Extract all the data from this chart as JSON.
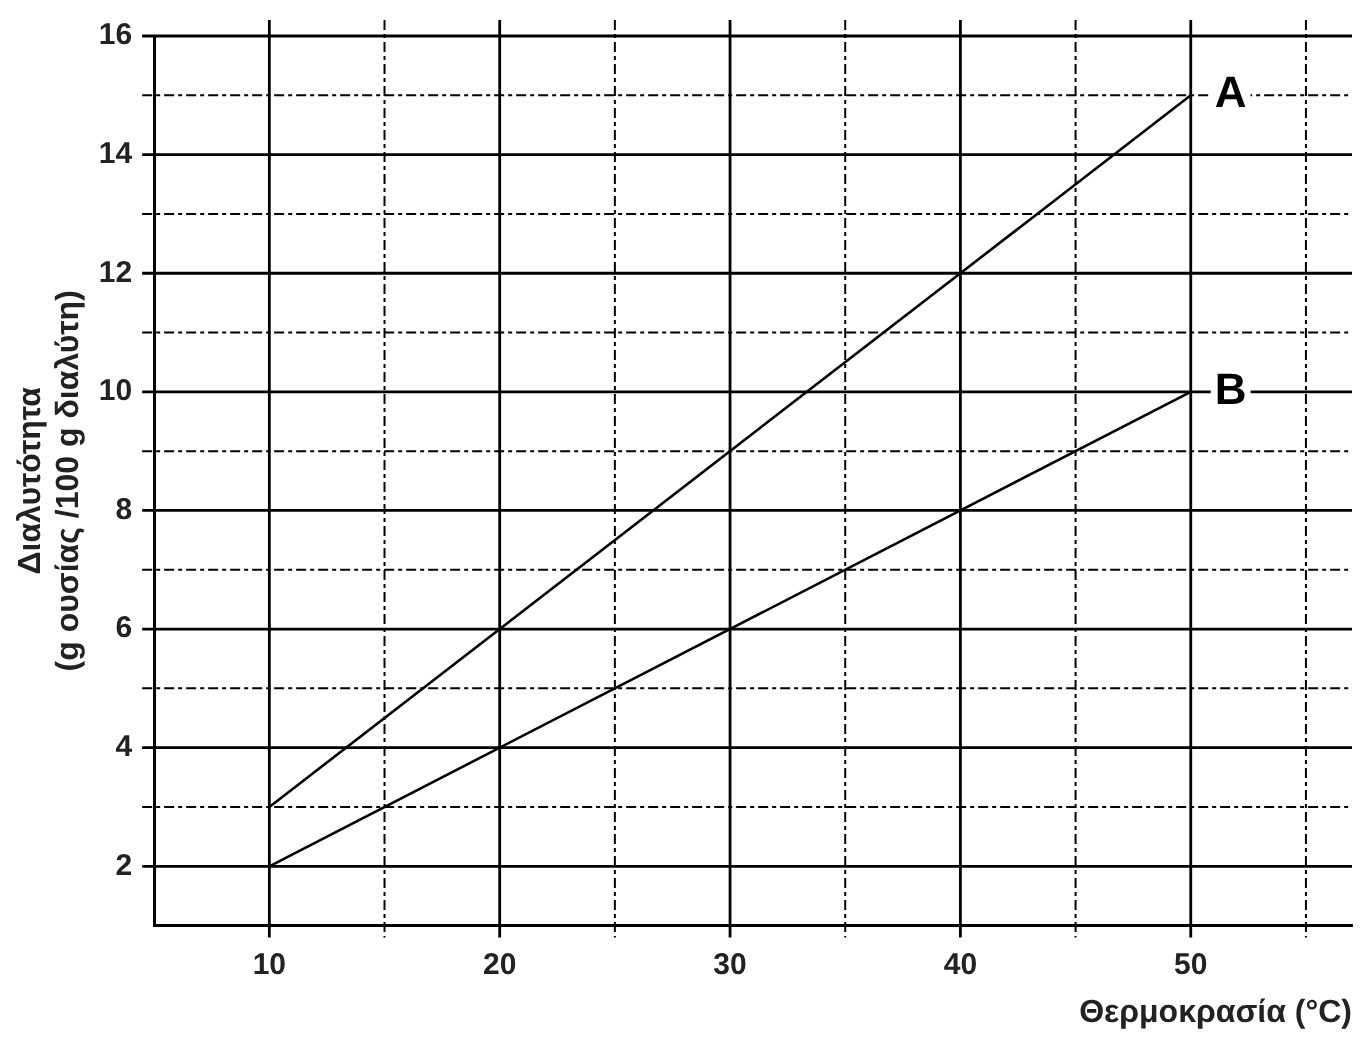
{
  "chart_data": {
    "type": "line",
    "xlabel": "Θερμοκρασία (°C)",
    "ylabel": "Διαλυτότητα\n(g ουσίας /100 g διαλύτη)",
    "x": [
      10,
      50
    ],
    "series": [
      {
        "color": "#000000",
        "values": [
          3,
          15
        ]
      },
      {
        "color": "#000000",
        "values": [
          2,
          10
        ]
      }
    ],
    "xlim": [
      5,
      57
    ],
    "ylim": [
      1,
      16
    ],
    "xticks": [
      10,
      {
        "value": 15,
        "label": null
      },
      20,
      {
        "value": 25,
        "label": null
      },
      30,
      {
        "value": 35,
        "label": null
      },
      40,
      {
        "value": 45,
        "label": null
      },
      50,
      {
        "value": 55,
        "label": null
      }
    ],
    "yticks": [
      2,
      {
        "value": 3,
        "label": null
      },
      4,
      {
        "value": 5,
        "label": null
      },
      6,
      {
        "value": 7,
        "label": null
      },
      8,
      {
        "value": 9,
        "label": null
      },
      10,
      {
        "value": 11,
        "label": null
      },
      12,
      {
        "value": 13,
        "label": null
      },
      14,
      {
        "value": 15,
        "label": null
      },
      16
    ],
    "grid": true,
    "legend": false,
    "marker": "none",
    "line_style": "solid",
    "annotations": [
      {
        "text": "A",
        "x": 50,
        "y": 15
      },
      {
        "text": "B",
        "x": 50,
        "y": 10
      }
    ]
  }
}
